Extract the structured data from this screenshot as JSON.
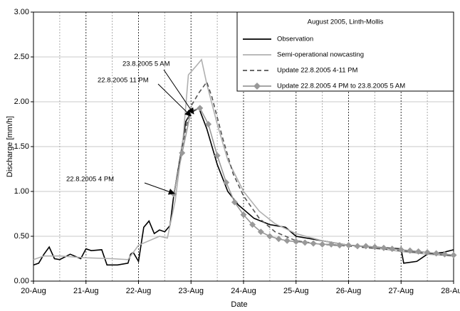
{
  "chart_data": {
    "type": "line",
    "xlabel": "Date",
    "ylabel": "Discharge [mm/h]",
    "xlim": [
      20,
      28
    ],
    "ylim": [
      0,
      3
    ],
    "xticks": [
      {
        "value": 20,
        "label": "20-Aug"
      },
      {
        "value": 21,
        "label": "21-Aug"
      },
      {
        "value": 22,
        "label": "22-Aug"
      },
      {
        "value": 23,
        "label": "23-Aug"
      },
      {
        "value": 24,
        "label": "24-Aug"
      },
      {
        "value": 25,
        "label": "25-Aug"
      },
      {
        "value": 26,
        "label": "26-Aug"
      },
      {
        "value": 27,
        "label": "27-Aug"
      },
      {
        "value": 28,
        "label": "28-Aug"
      }
    ],
    "xminorticks": [
      20.5,
      21.5,
      22.5,
      23.5,
      24.5,
      25.5,
      26.5,
      27.5
    ],
    "yticks": [
      {
        "value": 0,
        "label": "0.00"
      },
      {
        "value": 0.5,
        "label": "0.50"
      },
      {
        "value": 1,
        "label": "1.00"
      },
      {
        "value": 1.5,
        "label": "1.50"
      },
      {
        "value": 2,
        "label": "2.00"
      },
      {
        "value": 2.5,
        "label": "2.50"
      },
      {
        "value": 3,
        "label": "3.00"
      }
    ],
    "grid": true,
    "legend_title": "August 2005, Linth-Mollis",
    "legend_position": "upper right",
    "annotations": [
      "23.8.2005 5 AM",
      "22.8.2005 11 PM",
      "22.8.2005 4 PM"
    ],
    "series": [
      {
        "name": "Observation",
        "color": "#000000",
        "width": 1.6,
        "dash": false,
        "marker": null,
        "x": [
          20.0,
          20.1,
          20.2,
          20.3,
          20.4,
          20.5,
          20.7,
          20.9,
          21.0,
          21.1,
          21.3,
          21.4,
          21.6,
          21.8,
          21.85,
          21.9,
          22.0,
          22.1,
          22.2,
          22.3,
          22.4,
          22.5,
          22.6,
          22.67,
          22.8,
          22.9,
          23.0,
          23.15,
          23.3,
          23.5,
          23.7,
          23.9,
          24.2,
          24.5,
          24.8,
          25.0,
          25.5,
          26.0,
          26.5,
          27.0,
          27.05,
          27.3,
          27.5,
          27.8,
          28.0
        ],
        "values": [
          0.18,
          0.2,
          0.3,
          0.38,
          0.25,
          0.24,
          0.3,
          0.25,
          0.36,
          0.34,
          0.35,
          0.18,
          0.18,
          0.2,
          0.3,
          0.32,
          0.22,
          0.6,
          0.67,
          0.53,
          0.57,
          0.55,
          0.62,
          0.95,
          1.4,
          1.78,
          1.88,
          1.93,
          1.7,
          1.3,
          1.0,
          0.85,
          0.7,
          0.63,
          0.6,
          0.5,
          0.45,
          0.4,
          0.38,
          0.36,
          0.2,
          0.22,
          0.3,
          0.32,
          0.35
        ]
      },
      {
        "name": "Semi-operational nowcasting",
        "color": "#b0b0b0",
        "width": 1.6,
        "dash": false,
        "marker": null,
        "x": [
          20.0,
          20.2,
          20.5,
          21.0,
          21.5,
          21.8,
          22.0,
          22.2,
          22.4,
          22.55,
          22.7,
          22.85,
          22.95,
          23.1,
          23.2,
          23.3,
          23.5,
          23.7,
          24.0,
          24.3,
          24.6,
          25.0,
          25.5,
          26.0,
          26.5,
          27.0,
          27.5,
          28.0
        ],
        "values": [
          0.24,
          0.28,
          0.28,
          0.26,
          0.25,
          0.24,
          0.4,
          0.45,
          0.5,
          0.48,
          0.9,
          1.6,
          2.3,
          2.4,
          2.47,
          2.2,
          1.75,
          1.35,
          1.0,
          0.78,
          0.64,
          0.53,
          0.45,
          0.4,
          0.37,
          0.33,
          0.3,
          0.28
        ]
      },
      {
        "name": "Update 22.8.2005 4-11 PM",
        "color": "#555555",
        "width": 1.6,
        "dash": true,
        "marker": null,
        "x": [
          22.67,
          22.8,
          22.9,
          23.0,
          23.15,
          23.3,
          23.4,
          23.6,
          23.8,
          24.0,
          24.3,
          24.6,
          25.0,
          25.5,
          26.0,
          27.0,
          28.0
        ],
        "values": [
          0.95,
          1.4,
          1.7,
          1.95,
          2.1,
          2.22,
          2.05,
          1.6,
          1.2,
          0.95,
          0.7,
          0.55,
          0.45,
          0.41,
          0.39,
          0.34,
          0.28
        ]
      },
      {
        "name": "Update 22.8.2005 4 PM to 23.8.2005 5 AM",
        "color": "#999999",
        "width": 1.6,
        "dash": false,
        "marker": "diamond",
        "x": [
          22.67,
          22.83,
          23.0,
          23.17,
          23.33,
          23.5,
          23.67,
          23.83,
          24.0,
          24.17,
          24.33,
          24.5,
          24.67,
          24.83,
          25.0,
          25.17,
          25.33,
          25.5,
          25.67,
          25.83,
          26.0,
          26.17,
          26.33,
          26.5,
          26.67,
          26.83,
          27.0,
          27.17,
          27.33,
          27.5,
          27.67,
          27.83,
          28.0
        ],
        "values": [
          0.97,
          1.43,
          1.9,
          1.93,
          1.75,
          1.4,
          1.1,
          0.88,
          0.74,
          0.63,
          0.55,
          0.5,
          0.47,
          0.45,
          0.44,
          0.43,
          0.42,
          0.41,
          0.41,
          0.4,
          0.4,
          0.39,
          0.39,
          0.38,
          0.37,
          0.36,
          0.35,
          0.34,
          0.33,
          0.32,
          0.31,
          0.3,
          0.29
        ]
      }
    ]
  }
}
